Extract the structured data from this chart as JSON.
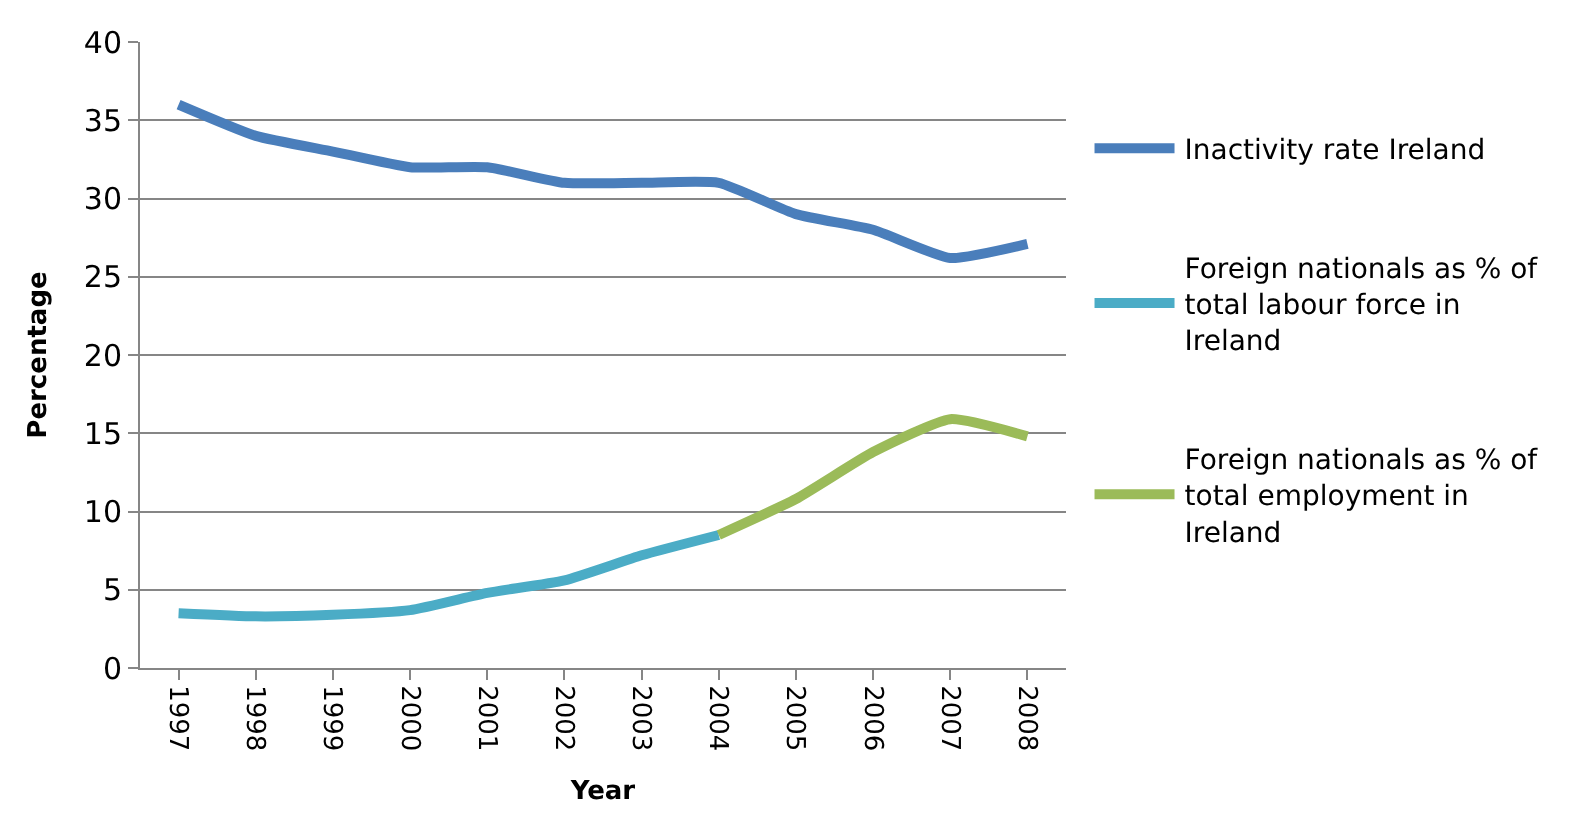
{
  "chart_data": {
    "type": "line",
    "xlabel": "Year",
    "ylabel": "Percentage",
    "categories": [
      "1997",
      "1998",
      "1999",
      "2000",
      "2001",
      "2002",
      "2003",
      "2004",
      "2005",
      "2006",
      "2007",
      "2008"
    ],
    "series": [
      {
        "name": "Inactivity rate Ireland",
        "color": "#4a7ebb",
        "values": [
          36,
          34,
          33,
          32,
          32,
          31,
          31,
          31,
          29,
          28,
          26.2,
          27.1
        ]
      },
      {
        "name": "Foreign nationals as % of total labour force in Ireland",
        "color": "#4bacc6",
        "values": [
          3.5,
          3.3,
          3.4,
          3.7,
          4.8,
          5.6,
          7.2,
          8.5,
          null,
          null,
          null,
          null
        ]
      },
      {
        "name": "Foreign nationals as % of total employment in Ireland",
        "color": "#9bbb59",
        "values": [
          null,
          null,
          null,
          null,
          null,
          null,
          null,
          8.5,
          10.8,
          13.8,
          15.9,
          14.8
        ]
      }
    ],
    "ylim": [
      0,
      40
    ],
    "yticks": [
      0,
      5,
      10,
      15,
      20,
      25,
      30,
      35,
      40
    ],
    "grid": "y",
    "legend": "right",
    "marker": "none",
    "line_style": "solid"
  }
}
